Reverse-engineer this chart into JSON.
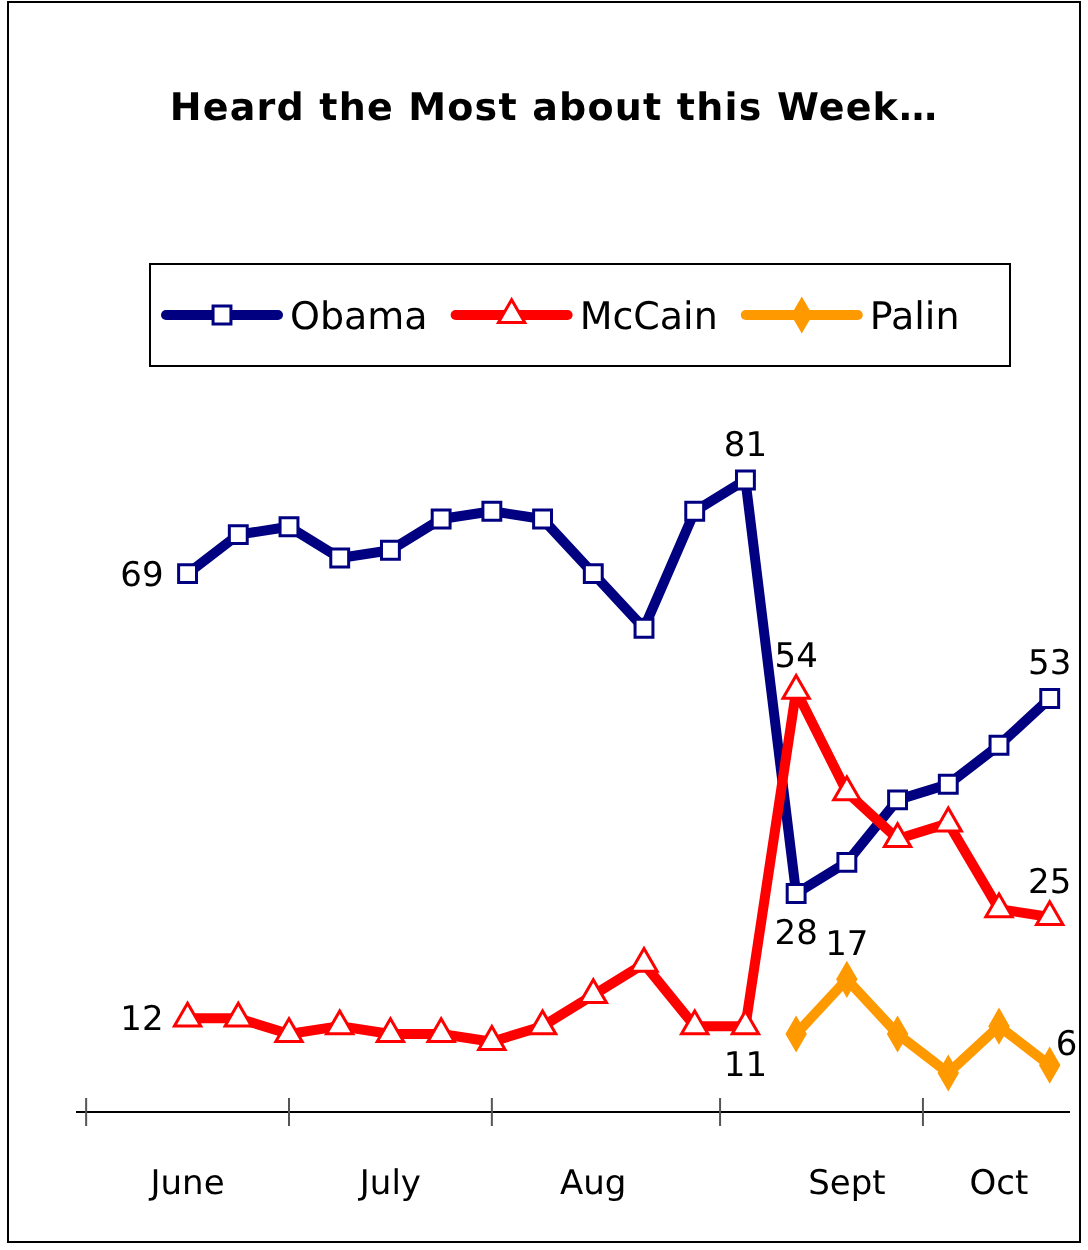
{
  "chart_data": {
    "type": "line",
    "title": "Heard the Most about this Week…",
    "categories": [
      "June",
      null,
      null,
      null,
      "July",
      null,
      null,
      null,
      "Aug",
      null,
      null,
      null,
      null,
      "Sept",
      null,
      null,
      "Oct",
      null
    ],
    "tick_labels": "x",
    "legend": "top",
    "series": [
      {
        "name": "Obama",
        "color": "#000080",
        "marker": "square",
        "values": [
          69,
          74,
          75,
          71,
          72,
          76,
          77,
          76,
          69,
          62,
          77,
          81,
          28,
          32,
          40,
          42,
          47,
          53
        ],
        "value_labels": [
          "69",
          null,
          null,
          null,
          null,
          null,
          null,
          null,
          null,
          null,
          null,
          "81",
          "28",
          null,
          null,
          null,
          null,
          "53"
        ]
      },
      {
        "name": "McCain",
        "color": "#ff0000",
        "marker": "triangle",
        "values": [
          12,
          12,
          10,
          11,
          10,
          10,
          9,
          11,
          15,
          19,
          11,
          11,
          54,
          41,
          35,
          37,
          26,
          25
        ],
        "value_labels": [
          "12",
          null,
          null,
          null,
          null,
          null,
          null,
          null,
          null,
          null,
          null,
          "11",
          "54",
          null,
          null,
          null,
          null,
          "25"
        ]
      },
      {
        "name": "Palin",
        "color": "#ff9900",
        "marker": "diamond",
        "values": [
          null,
          null,
          null,
          null,
          null,
          null,
          null,
          null,
          null,
          null,
          null,
          null,
          10,
          17,
          10,
          5,
          11,
          6
        ],
        "value_labels": [
          null,
          null,
          null,
          null,
          null,
          null,
          null,
          null,
          null,
          null,
          null,
          null,
          null,
          "17",
          null,
          null,
          null,
          "6"
        ]
      }
    ]
  }
}
